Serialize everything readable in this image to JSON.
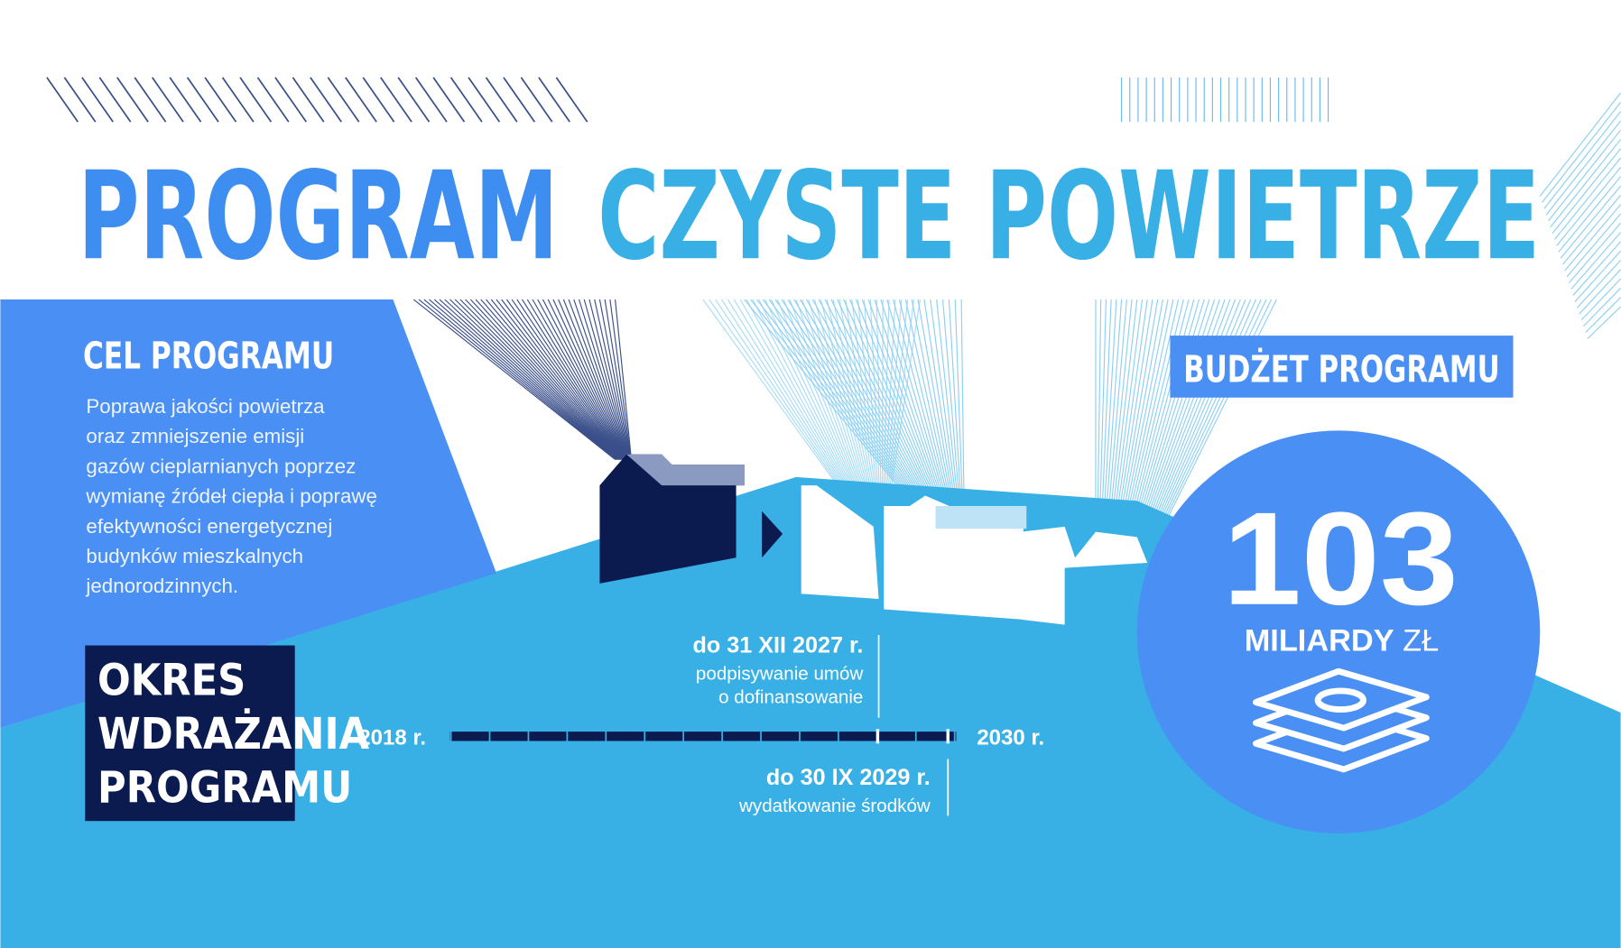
{
  "header": {
    "title_part1": "PROGRAM",
    "title_part2": "CZYSTE POWIETRZE"
  },
  "goal": {
    "heading": "CEL PROGRAMU",
    "lines": [
      "Poprawa jakości powietrza",
      "oraz zmniejszenie emisji",
      "gazów cieplarnianych poprzez",
      "wymianę źródeł ciepła i poprawę",
      "efektywności energetycznej",
      "budynków mieszkalnych",
      "jednorodzinnych."
    ]
  },
  "budget": {
    "heading": "BUDŻET PROGRAMU",
    "amount": "103",
    "unit_bold": "MILIARDY",
    "unit_light": "ZŁ"
  },
  "period": {
    "heading_lines": [
      "OKRES",
      "WDRAŻANIA",
      "PROGRAMU"
    ]
  },
  "timeline": {
    "start": "2018 r.",
    "end": "2030 r.",
    "milestones": [
      {
        "date": "do 31 XII 2027 r.",
        "lines": [
          "podpisywanie umów",
          "o dofinansowanie"
        ]
      },
      {
        "date": "do 30 IX 2029 r.",
        "lines": [
          "wydatkowanie środków"
        ]
      }
    ]
  }
}
